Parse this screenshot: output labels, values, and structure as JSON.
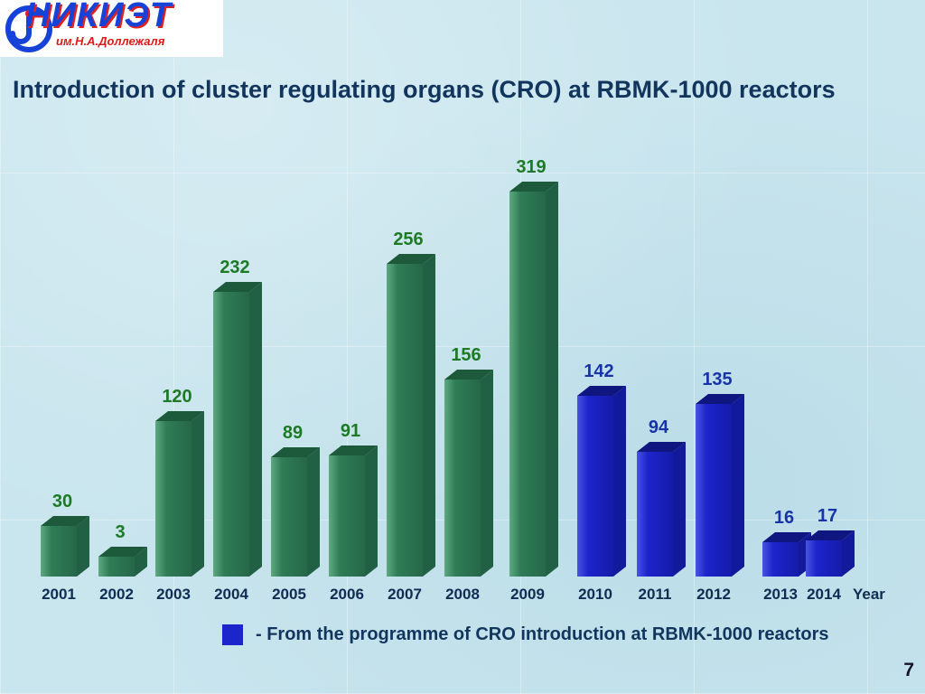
{
  "slide": {
    "title": "Introduction of cluster regulating organs (CRO) at RBMK-1000 reactors",
    "page_number": "7"
  },
  "logo": {
    "title": "НИКИЭТ",
    "subtitle": "им.Н.А.Доллежаля"
  },
  "chart_data": {
    "type": "bar",
    "title": "Introduction of cluster regulating organs (CRO) at RBMK-1000 reactors",
    "xlabel": "Year",
    "ylabel": "",
    "categories": [
      "2001",
      "2002",
      "2003",
      "2004",
      "2005",
      "2006",
      "2007",
      "2008",
      "2009",
      "2010",
      "2011",
      "2012",
      "2013",
      "2014"
    ],
    "values": [
      30,
      3,
      120,
      232,
      89,
      91,
      256,
      156,
      319,
      142,
      94,
      135,
      16,
      17
    ],
    "bar_colors": [
      "green",
      "green",
      "green",
      "green",
      "green",
      "green",
      "green",
      "green",
      "green",
      "blue",
      "blue",
      "blue",
      "blue",
      "blue"
    ],
    "ylim": [
      0,
      350
    ],
    "grid": false,
    "legend_position": "bottom",
    "palette": {
      "green": {
        "front": "#2f7d57",
        "front_light": "#5fa981",
        "front_dark": "#266749",
        "top": "#1d5a3c",
        "side": "#216044",
        "label": "#1d7a24"
      },
      "blue": {
        "front": "#1c24cc",
        "front_light": "#4a55e0",
        "front_dark": "#151ba8",
        "top": "#10167f",
        "side": "#121a9b",
        "label": "#1733a8"
      }
    },
    "axis_label_color": "#0f2c52",
    "legend": [
      {
        "label": "- From the programme of CRO introduction at RBMK-1000 reactors",
        "color": "#1c24cc"
      }
    ]
  }
}
